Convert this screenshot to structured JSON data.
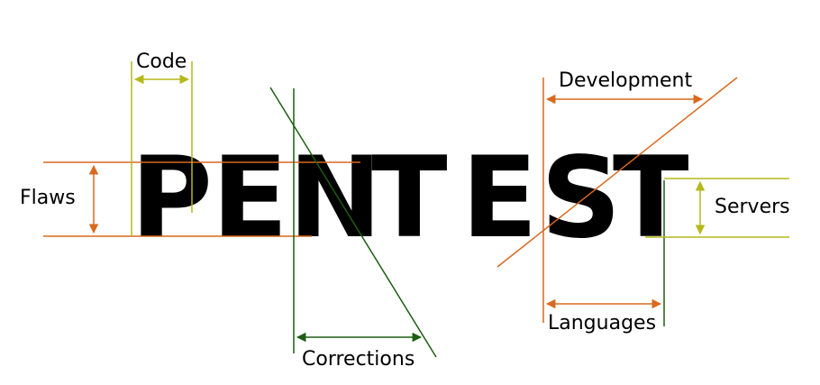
{
  "word": {
    "letters": [
      "P",
      "E",
      "N",
      "T",
      "E",
      "S",
      "T"
    ]
  },
  "labels": {
    "code": "Code",
    "flaws": "Flaws",
    "corrections": "Corrections",
    "development": "Development",
    "servers": "Servers",
    "languages": "Languages"
  },
  "colors": {
    "text": "#000000",
    "orange": "#d9691f",
    "olive": "#b5b81a",
    "green": "#1d5e13"
  }
}
